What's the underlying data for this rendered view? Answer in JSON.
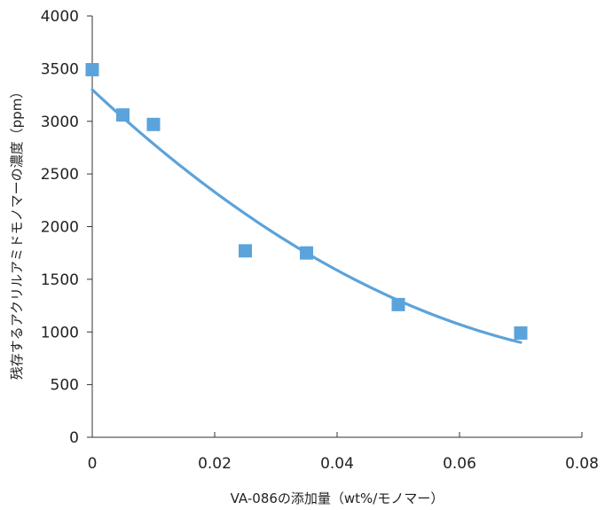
{
  "chart_data": {
    "type": "scatter",
    "title": "",
    "xlabel": "VA-086の添加量（wt%/モノマー）",
    "ylabel": "残存するアクリルアミドモノマーの濃度（ppm）",
    "xlim": [
      0,
      0.08
    ],
    "ylim": [
      0,
      4000
    ],
    "x_ticks": [
      "0",
      "0.02",
      "0.04",
      "0.06",
      "0.08"
    ],
    "y_ticks": [
      "0",
      "500",
      "1000",
      "1500",
      "2000",
      "2500",
      "3000",
      "3500",
      "4000"
    ],
    "grid": false,
    "legend": "none",
    "series": [
      {
        "kind": "points",
        "marker": "square",
        "color": "#5ba3db",
        "points": [
          {
            "x": 0.0,
            "y": 3490
          },
          {
            "x": 0.005,
            "y": 3060
          },
          {
            "x": 0.01,
            "y": 2970
          },
          {
            "x": 0.025,
            "y": 1770
          },
          {
            "x": 0.035,
            "y": 1750
          },
          {
            "x": 0.05,
            "y": 1260
          },
          {
            "x": 0.07,
            "y": 990
          }
        ]
      },
      {
        "kind": "trendline",
        "color": "#5ba3db",
        "fit": "quadratic",
        "x_range": [
          0,
          0.07
        ],
        "points": [
          {
            "x": 0.0,
            "y": 3300
          },
          {
            "x": 0.035,
            "y": 1750
          },
          {
            "x": 0.07,
            "y": 900
          }
        ]
      }
    ]
  }
}
